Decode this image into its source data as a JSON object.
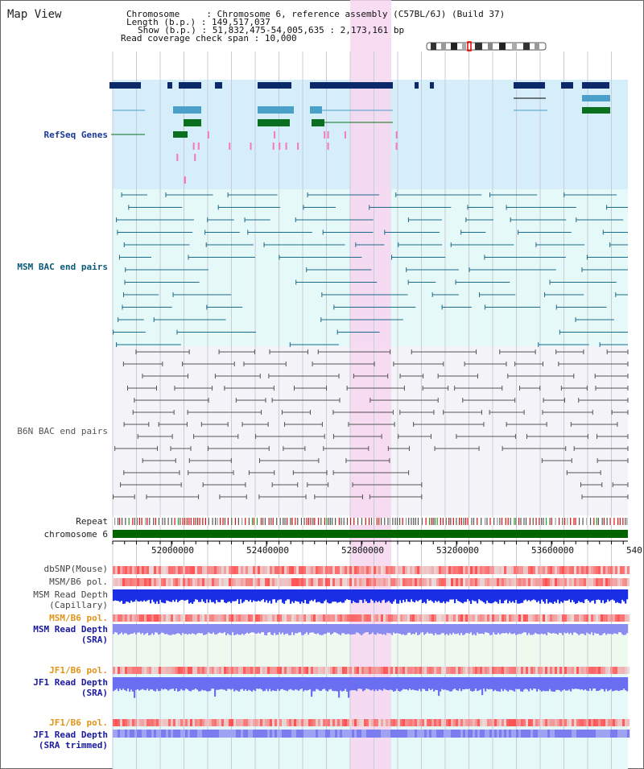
{
  "title": "Map View",
  "info": {
    "chromosome_label": "Chromosome",
    "chromosome_value": "Chromosome 6, reference assembly (C57BL/6J) (Build 37)",
    "length_label": "Length (b.p.)",
    "length_value": "149,517,037",
    "show_label": "Show (b.p.)",
    "show_value": "51,832,475-54,005,635 : 2,173,161 bp",
    "coverage_label": "Read coverage check span",
    "coverage_value": "10,000"
  },
  "tracks": {
    "refseq": "RefSeq Genes",
    "msm_bac": "MSM BAC end pairs",
    "b6n_bac": "B6N BAC end pairs",
    "repeat": "Repeat",
    "chromosome": "chromosome 6",
    "dbsnp": "dbSNP(Mouse)",
    "msm_b6_pol": "MSM/B6 pol.",
    "msm_depth_cap_1": "MSM Read Depth",
    "msm_depth_cap_2": "(Capillary)",
    "msm_b6_pol_2": "MSM/B6 pol.",
    "msm_depth_sra_1": "MSM Read Depth",
    "msm_depth_sra_2": "(SRA)",
    "jf1_pol": "JF1/B6 pol.",
    "jf1_depth_1": "JF1 Read Depth",
    "jf1_depth_2": "(SRA)",
    "jf1_pol_2": "JF1/B6 pol.",
    "jf1_trim_1": "JF1 Read Depth",
    "jf1_trim_2": "(SRA trimmed)"
  },
  "axis_ticks": [
    "52000000",
    "52400000",
    "52800000",
    "53200000",
    "53600000",
    "540"
  ],
  "colors": {
    "refseq_bg": "#d6eef9",
    "msm_bg": "#e6f9f9",
    "b6n_bg": "#f4f4f8",
    "highlight": "#f7d6f0",
    "chrom_bar": "#006400",
    "depth_blue": "#1a2ee6",
    "sra_blue": "#8a8cf0"
  }
}
